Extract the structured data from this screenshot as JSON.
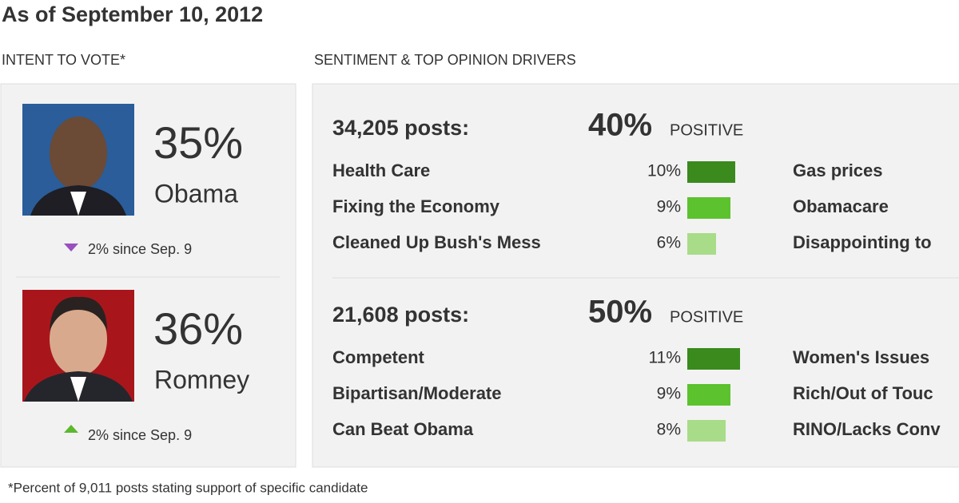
{
  "header": {
    "title": "As of September 10, 2012"
  },
  "intent": {
    "heading": "INTENT TO VOTE*",
    "candidates": [
      {
        "percent": "35%",
        "name": "Obama",
        "change": "2% since Sep. 9",
        "direction": "down",
        "color": "#1d4f80"
      },
      {
        "percent": "36%",
        "name": "Romney",
        "change": "2% since Sep. 9",
        "direction": "up",
        "color": "#8b1a1a"
      }
    ]
  },
  "sentiment": {
    "heading": "SENTIMENT & TOP OPINION DRIVERS",
    "candidates": [
      {
        "posts": "34,205 posts:",
        "positive_pct": "40%",
        "positive_label": "POSITIVE",
        "drivers": [
          {
            "name": "Health Care",
            "value": 10,
            "value_label": "10%"
          },
          {
            "name": "Fixing the Economy",
            "value": 9,
            "value_label": "9%"
          },
          {
            "name": "Cleaned Up Bush's Mess",
            "value": 6,
            "value_label": "6%"
          }
        ],
        "negatives": [
          "Gas prices",
          "Obamacare",
          "Disappointing to"
        ]
      },
      {
        "posts": "21,608 posts:",
        "positive_pct": "50%",
        "positive_label": "POSITIVE",
        "drivers": [
          {
            "name": "Competent",
            "value": 11,
            "value_label": "11%"
          },
          {
            "name": "Bipartisan/Moderate",
            "value": 9,
            "value_label": "9%"
          },
          {
            "name": "Can Beat Obama",
            "value": 8,
            "value_label": "8%"
          }
        ],
        "negatives": [
          "Women's Issues",
          "Rich/Out of Touc",
          "RINO/Lacks Conv"
        ]
      }
    ]
  },
  "footnote": "*Percent of 9,011 posts stating support of specific candidate"
}
